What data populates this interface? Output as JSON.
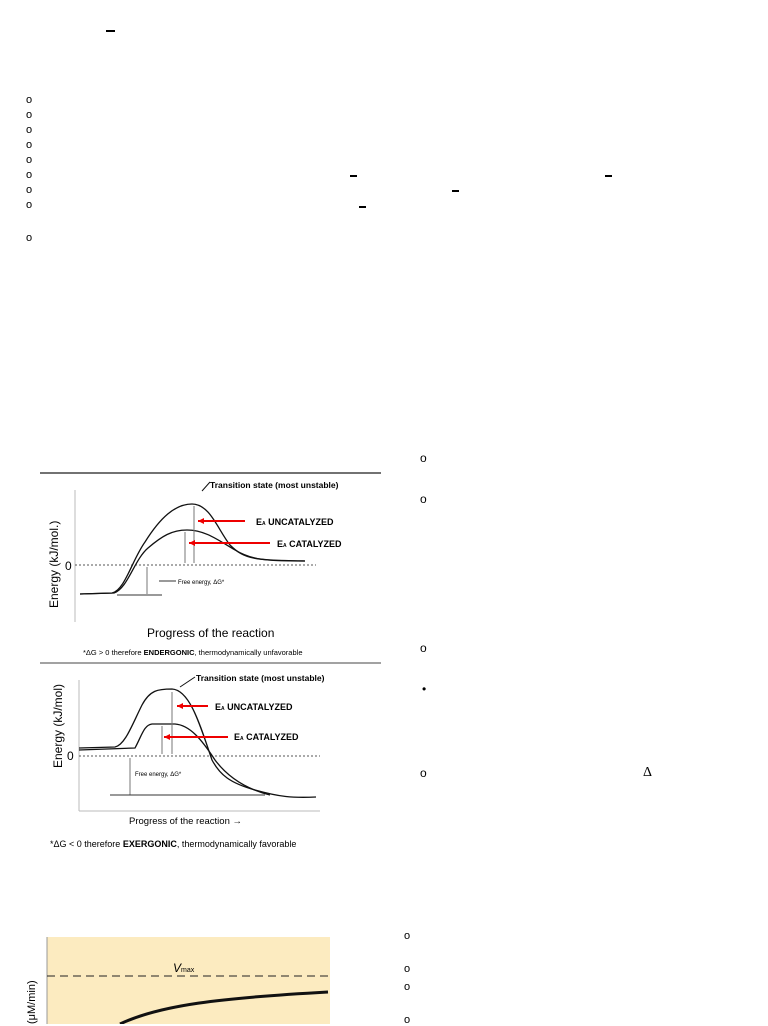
{
  "bullets": {
    "hollow": "o",
    "filled": "•",
    "delta": "Δ"
  },
  "chart1": {
    "ylabel": "Energy (kJ/mol.)",
    "zero": "0",
    "transition": "Transition state (most unstable)",
    "ea_uncat": "UNCATALYZED",
    "ea_cat": "CATALYZED",
    "ea_prefix": "E",
    "ea_sub": "A",
    "free_energy": "Free energy, ΔG*",
    "xlabel": "Progress of the reaction",
    "caption_pre": "*ΔG > 0 therefore ",
    "caption_bold": "ENDERGONIC",
    "caption_post": ", thermodynamically unfavorable"
  },
  "chart2": {
    "ylabel": "Energy (kJ/mol)",
    "zero": "0",
    "transition": "Transition state (most unstable)",
    "ea_uncat": "UNCATALYZED",
    "ea_cat": "CATALYZED",
    "ea_prefix": "E",
    "ea_sub": "A",
    "free_energy": "Free energy, ΔG*",
    "xlabel": "Progress of the reaction →",
    "caption_pre": "*ΔG < 0 therefore ",
    "caption_bold": "EXERGONIC",
    "caption_post": ", thermodynamically favorable"
  },
  "chart3": {
    "vmax": "V",
    "vmax_sub": "max",
    "ylabel": "(μM/min)"
  }
}
